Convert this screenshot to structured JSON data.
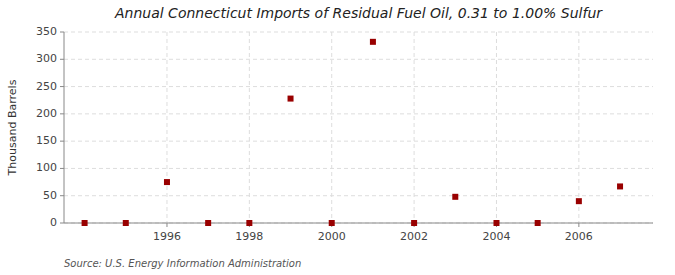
{
  "chart_data": {
    "type": "scatter",
    "title": "Annual Connecticut Imports of Residual Fuel Oil, 0.31 to 1.00% Sulfur",
    "y_label": "Thousand Barrels",
    "source": "Source: U.S. Energy Information Administration",
    "x": [
      1994,
      1995,
      1996,
      1997,
      1998,
      1999,
      2000,
      2001,
      2002,
      2003,
      2004,
      2005,
      2006,
      2007
    ],
    "values": [
      0,
      0,
      75,
      0,
      0,
      228,
      0,
      332,
      0,
      48,
      0,
      0,
      40,
      67
    ],
    "color": "#990000",
    "marker": "square",
    "xlim": [
      1993.5,
      2007.8
    ],
    "ylim": [
      0,
      350
    ],
    "yticks": [
      0,
      50,
      100,
      150,
      200,
      250,
      300,
      350
    ],
    "xticks": [
      1996,
      1998,
      2000,
      2002,
      2004,
      2006
    ],
    "grid": true
  }
}
